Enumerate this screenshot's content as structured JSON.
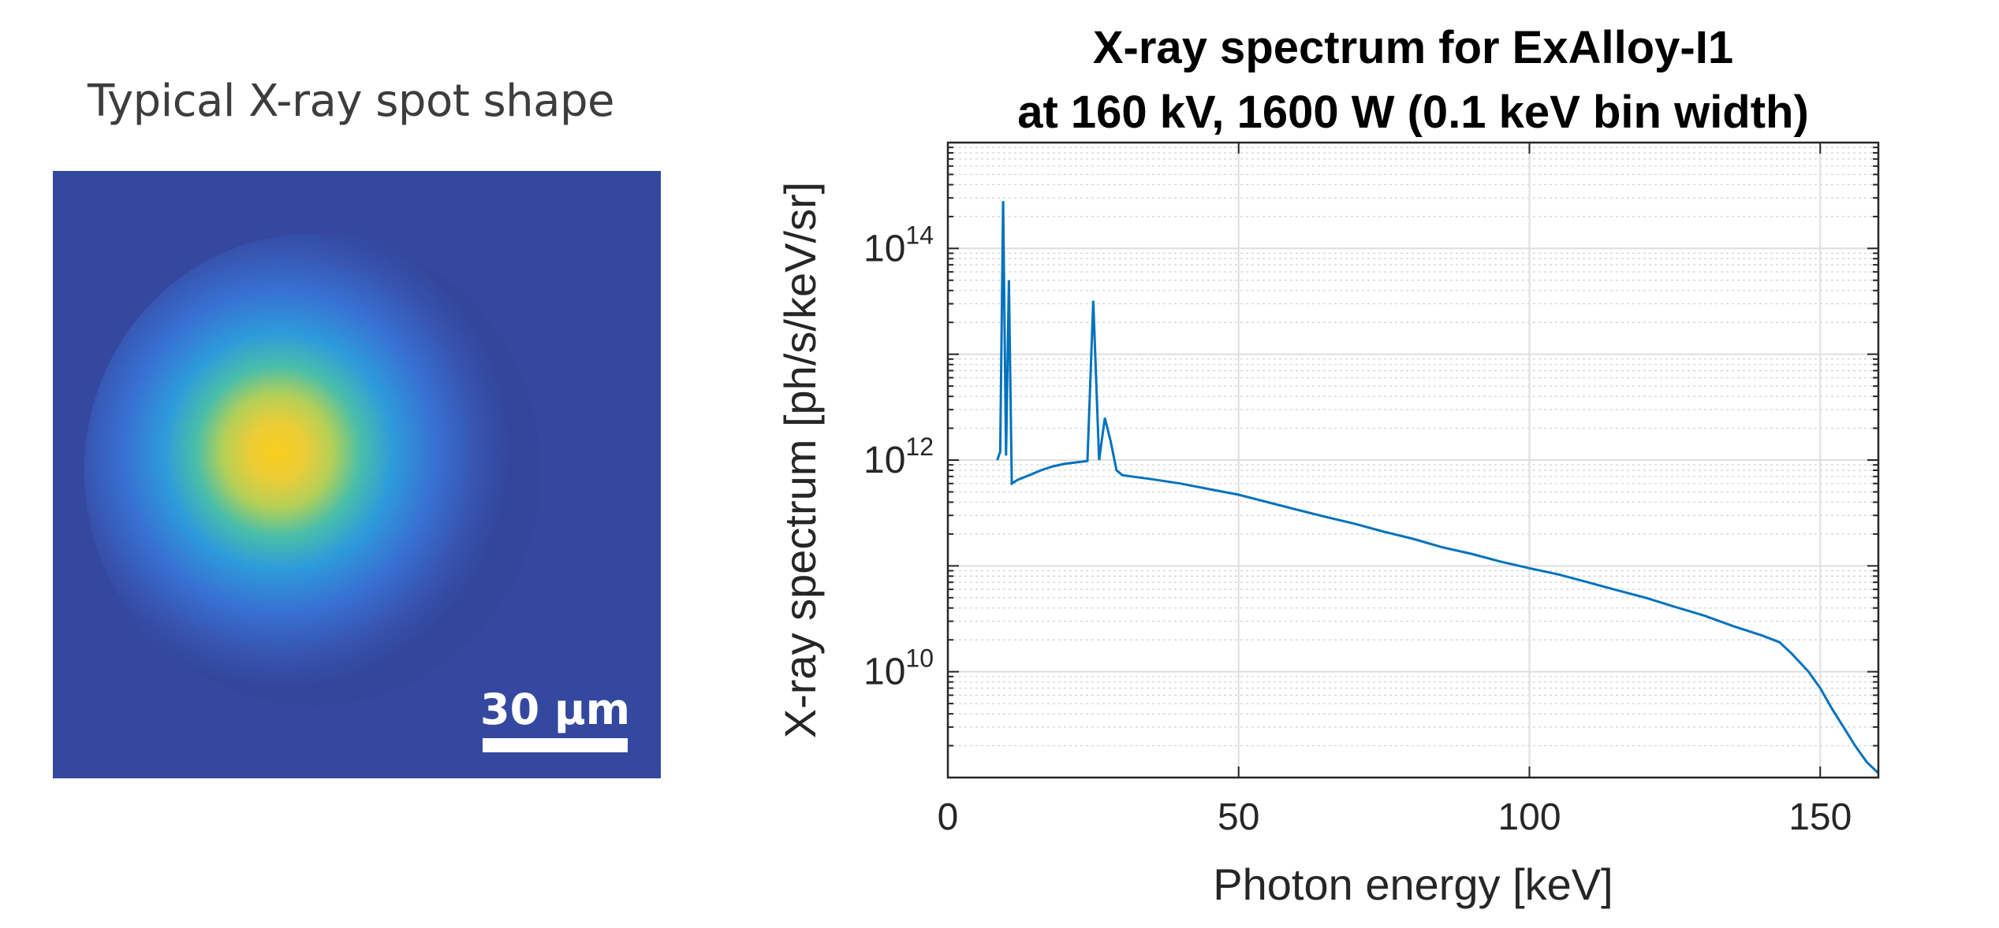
{
  "spot_panel": {
    "title": "Typical X-ray spot shape",
    "scale_bar_label": "30 µm"
  },
  "chart_data": {
    "type": "line",
    "title": "X-ray spectrum for ExAlloy-I1",
    "subtitle": "at 160 kV, 1600 W (0.1 keV bin width)",
    "xlabel": "Photon energy [keV]",
    "ylabel": "X-ray spectrum [ph/s/keV/sr]",
    "xlim": [
      0,
      160
    ],
    "ylim": [
      1000000000.0,
      1000000000000000.0
    ],
    "y_scale": "log",
    "grid": true,
    "x_ticks": [
      0,
      50,
      100,
      150
    ],
    "x_tick_labels": [
      "0",
      "50",
      "100",
      "150"
    ],
    "y_ticks": [
      10000000000.0,
      1000000000000.0,
      100000000000000.0
    ],
    "y_tick_labels": [
      {
        "base": "10",
        "exp": "10"
      },
      {
        "base": "10",
        "exp": "12"
      },
      {
        "base": "10",
        "exp": "14"
      }
    ],
    "series": [
      {
        "color": "#0072bd",
        "x": [
          8.5,
          9,
          9.5,
          10,
          10.5,
          11,
          12,
          14,
          16,
          18,
          20,
          22,
          24,
          25,
          26,
          27,
          28,
          29,
          30,
          35,
          40,
          45,
          50,
          55,
          60,
          65,
          70,
          75,
          80,
          85,
          90,
          95,
          100,
          105,
          110,
          115,
          120,
          125,
          130,
          135,
          140,
          143,
          145,
          148,
          150,
          152,
          154,
          156,
          158,
          160
        ],
        "y": [
          1000000000000.0,
          1200000000000.0,
          280000000000000.0,
          1100000000000.0,
          50000000000000.0,
          600000000000.0,
          650000000000.0,
          720000000000.0,
          800000000000.0,
          870000000000.0,
          920000000000.0,
          950000000000.0,
          980000000000.0,
          32000000000000.0,
          1000000000000.0,
          2500000000000.0,
          1500000000000.0,
          800000000000.0,
          720000000000.0,
          660000000000.0,
          600000000000.0,
          530000000000.0,
          470000000000.0,
          400000000000.0,
          340000000000.0,
          290000000000.0,
          250000000000.0,
          210000000000.0,
          180000000000.0,
          150000000000.0,
          130000000000.0,
          110000000000.0,
          95000000000.0,
          83000000000.0,
          70000000000.0,
          59000000000.0,
          50000000000.0,
          41000000000.0,
          34000000000.0,
          27000000000.0,
          22000000000.0,
          19000000000.0,
          15000000000.0,
          10000000000.0,
          7000000000.0,
          4500000000.0,
          3000000000.0,
          2000000000.0,
          1400000000.0,
          1100000000.0
        ]
      }
    ]
  }
}
